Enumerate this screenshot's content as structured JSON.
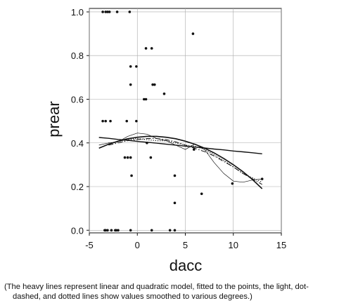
{
  "chart_data": {
    "type": "scatter",
    "x_label": "dacc",
    "y_label": "prear",
    "xlim": [
      -5,
      15
    ],
    "ylim": [
      -0.012,
      1.016
    ],
    "xticks": [
      -5,
      0,
      5,
      10,
      15
    ],
    "yticks": [
      {
        "value": 0,
        "label": "0.0"
      },
      0.2,
      0.4,
      0.6,
      0.8,
      {
        "value": 1,
        "label": "1.0"
      }
    ],
    "grid": true,
    "color": "#111111",
    "points": {
      "x": [
        -3.6,
        -3.3,
        -3.1,
        -2.9,
        -2.1,
        -0.8,
        5.8,
        0.9,
        1.5,
        -0.7,
        -0.1,
        -0.7,
        1.6,
        1.8,
        2.8,
        0.7,
        0.9,
        -3.6,
        -3.3,
        -2.8,
        -1.1,
        -0.1,
        1.0,
        -1.3,
        -1.0,
        -0.7,
        1.4,
        -0.6,
        3.9,
        6.7,
        5.9,
        9.9,
        3.9,
        13.0,
        -3.4,
        -3.3,
        -3.1,
        -2.7,
        -2.3,
        -2.2,
        -2.0,
        -0.7,
        1.5,
        3.4,
        3.9
      ],
      "values": [
        1,
        1,
        1,
        1,
        1,
        1,
        0.9,
        0.833,
        0.833,
        0.75,
        0.75,
        0.667,
        0.667,
        0.667,
        0.625,
        0.6,
        0.6,
        0.5,
        0.5,
        0.5,
        0.5,
        0.5,
        0.4,
        0.333,
        0.333,
        0.333,
        0.333,
        0.25,
        0.25,
        0.167,
        0.37,
        0.214,
        0.125,
        0.235,
        0,
        0,
        0,
        0,
        0,
        0,
        0,
        0,
        0,
        0,
        0
      ]
    },
    "lines": [
      {
        "style": "solid",
        "width": 1.4,
        "x": [
          -4,
          -3,
          -2,
          -1,
          0,
          1,
          2,
          3,
          4,
          5,
          6,
          7,
          8,
          9,
          10,
          11,
          12,
          13
        ],
        "values": [
          0.425,
          0.421,
          0.416,
          0.412,
          0.407,
          0.403,
          0.399,
          0.394,
          0.39,
          0.385,
          0.381,
          0.377,
          0.372,
          0.368,
          0.363,
          0.359,
          0.355,
          0.35
        ]
      },
      {
        "style": "solid",
        "width": 1.6,
        "x": [
          -4,
          -3,
          -2,
          -1,
          0,
          1,
          2,
          3,
          4,
          5,
          6,
          7,
          8,
          9,
          10,
          11,
          12,
          13
        ],
        "values": [
          0.376,
          0.394,
          0.408,
          0.419,
          0.426,
          0.43,
          0.43,
          0.426,
          0.419,
          0.408,
          0.394,
          0.376,
          0.354,
          0.329,
          0.3,
          0.268,
          0.232,
          0.19
        ]
      },
      {
        "style": "solid",
        "width": 0.7,
        "x": [
          -4,
          -3,
          -2,
          -1,
          0,
          1,
          2,
          3,
          4,
          5,
          6,
          7,
          8,
          9,
          10,
          11,
          12,
          13
        ],
        "values": [
          0.39,
          0.4,
          0.405,
          0.43,
          0.445,
          0.44,
          0.42,
          0.41,
          0.39,
          0.37,
          0.395,
          0.37,
          0.31,
          0.26,
          0.225,
          0.22,
          0.23,
          0.235
        ]
      },
      {
        "style": "dotdash",
        "width": 1,
        "x": [
          -3,
          -2,
          -1,
          0,
          1,
          2,
          3,
          4,
          5,
          6,
          7,
          8,
          9,
          10,
          11,
          12,
          13
        ],
        "values": [
          0.39,
          0.4,
          0.41,
          0.415,
          0.42,
          0.42,
          0.415,
          0.405,
          0.39,
          0.375,
          0.36,
          0.34,
          0.315,
          0.29,
          0.26,
          0.235,
          0.21
        ]
      },
      {
        "style": "dotted",
        "width": 1.2,
        "x": [
          -3,
          -2,
          -1,
          0,
          1,
          2,
          3,
          4,
          5,
          6,
          7,
          8,
          9,
          10,
          11,
          12,
          13
        ],
        "values": [
          0.4,
          0.405,
          0.415,
          0.42,
          0.415,
          0.41,
          0.41,
          0.4,
          0.39,
          0.385,
          0.37,
          0.345,
          0.32,
          0.29,
          0.26,
          0.24,
          0.22
        ]
      }
    ],
    "caption": [
      "(The heavy lines represent linear and quadratic model, fitted to the points, the light, dot-",
      "dashed, and dotted lines show values smoothed to various degrees.)"
    ]
  }
}
